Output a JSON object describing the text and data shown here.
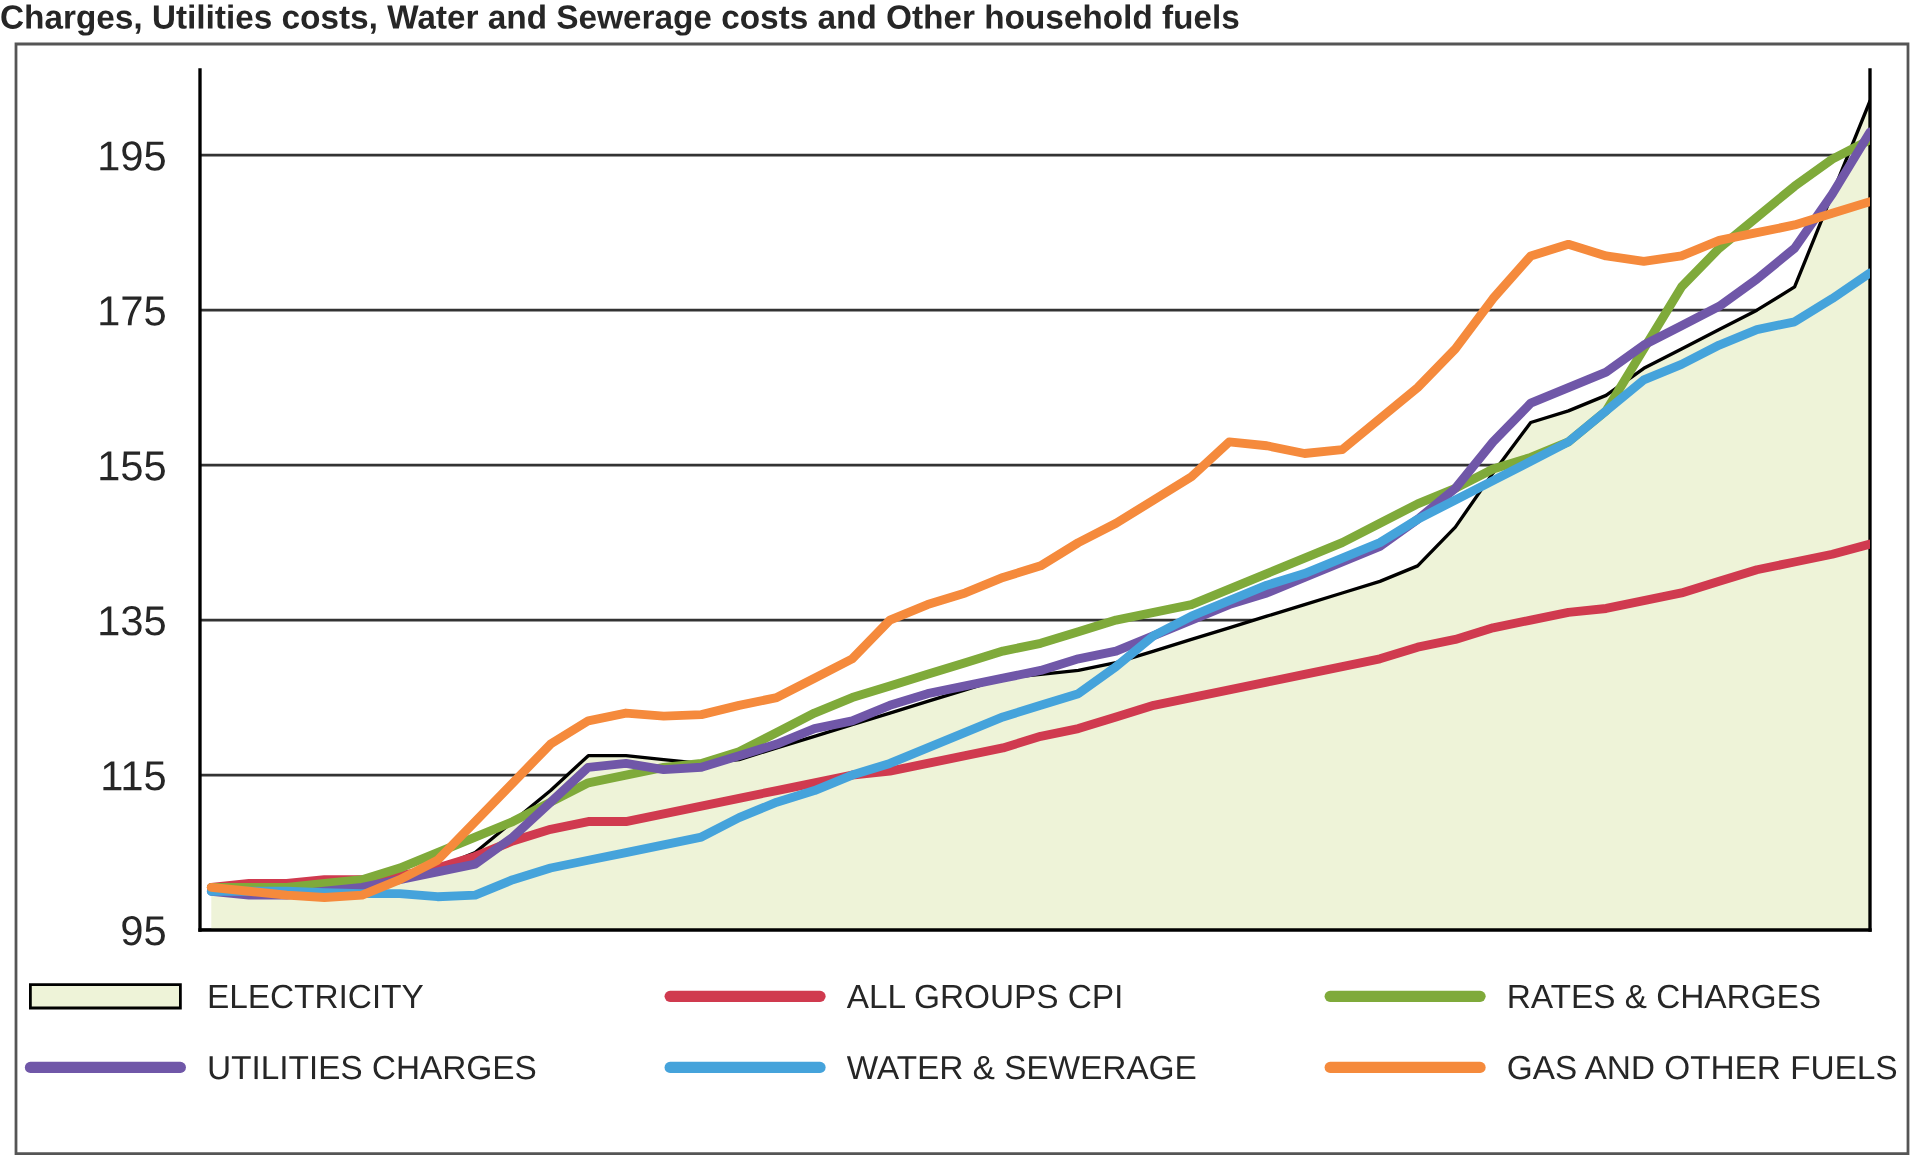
{
  "chart_data": {
    "type": "line",
    "title": "Charges, Utilities costs, Water and Sewerage costs and Other household fuels",
    "categories": [
      null,
      null,
      null,
      null,
      null,
      null,
      null,
      null,
      null,
      null,
      null,
      null,
      null,
      null,
      null,
      null,
      null,
      null,
      null,
      null,
      null,
      null,
      null,
      null,
      null,
      null,
      null,
      null,
      null,
      null,
      null,
      null,
      null,
      null,
      null,
      null,
      null,
      null,
      null,
      null,
      null,
      null,
      null,
      null,
      null
    ],
    "ylim": [
      95,
      206
    ],
    "yticks": [
      95,
      115,
      135,
      155,
      175,
      195
    ],
    "grid": "y",
    "legend": "bottom",
    "series": [
      {
        "name": "ELECTRICITY",
        "type": "area",
        "color": "#eef3d8",
        "values": [
          100.5,
          100.5,
          100.7,
          101,
          101.5,
          102,
          103,
          105,
          109,
          113,
          117.5,
          117.5,
          117,
          116.5,
          117,
          118.5,
          120,
          121.5,
          123,
          124.5,
          126,
          127.5,
          128,
          128.5,
          129.5,
          131,
          132.5,
          134,
          135.5,
          137,
          138.5,
          140,
          142,
          147,
          154,
          160.5,
          162,
          164,
          167.5,
          170,
          172.5,
          175,
          178,
          190,
          202
        ]
      },
      {
        "name": "ALL GROUPS CPI",
        "color": "#d03a4f",
        "values": [
          100.5,
          101,
          101,
          101.5,
          101.5,
          102,
          103,
          104.5,
          106.5,
          108,
          109,
          109,
          110,
          111,
          112,
          113,
          114,
          115,
          115.5,
          116.5,
          117.5,
          118.5,
          120,
          121,
          122.5,
          124,
          125,
          126,
          127,
          128,
          129,
          130,
          131.5,
          132.5,
          134,
          135,
          136,
          136.5,
          137.5,
          138.5,
          140,
          141.5,
          142.5,
          143.5,
          144.8
        ]
      },
      {
        "name": "RATES & CHARGES",
        "color": "#7faa3a",
        "values": [
          100.5,
          100.5,
          100.5,
          101,
          101.5,
          103,
          105,
          107,
          109,
          111.5,
          114,
          115,
          116,
          116.5,
          118,
          120.5,
          123,
          125,
          126.5,
          128,
          129.5,
          131,
          132,
          133.5,
          135,
          136,
          137,
          139,
          141,
          143,
          145,
          147.5,
          150,
          152,
          154.5,
          156,
          158,
          162,
          170,
          178,
          183,
          187,
          191,
          194.5,
          197
        ]
      },
      {
        "name": "UTILITIES CHARGES",
        "color": "#7057a8",
        "values": [
          100,
          99.5,
          99.5,
          100,
          100.5,
          101.5,
          102.5,
          103.5,
          107,
          111.5,
          116,
          116.5,
          115.7,
          116,
          117.5,
          119,
          121,
          122,
          124,
          125.5,
          126.5,
          127.5,
          128.5,
          130,
          131,
          133,
          135,
          137,
          138.5,
          140.5,
          142.5,
          144.5,
          148,
          152,
          158,
          163,
          165,
          167,
          170.5,
          173,
          175.5,
          179,
          183,
          190,
          198
        ]
      },
      {
        "name": "WATER & SEWERAGE",
        "color": "#45a3db",
        "values": [
          100,
          100,
          100,
          99.8,
          99.7,
          99.7,
          99.3,
          99.5,
          101.5,
          103,
          104,
          105,
          106,
          107,
          109.5,
          111.5,
          113,
          115,
          116.5,
          118.5,
          120.5,
          122.5,
          124,
          125.5,
          129,
          133,
          135.5,
          137.5,
          139.5,
          141,
          143,
          145,
          148,
          150.5,
          153,
          155.5,
          158,
          162,
          166,
          168,
          170.5,
          172.5,
          173.5,
          176.5,
          179.8
        ]
      },
      {
        "name": "GAS AND OTHER FUELS",
        "color": "#f58a3c",
        "values": [
          100.5,
          100,
          99.5,
          99.2,
          99.5,
          101.5,
          104,
          109,
          114,
          119,
          122,
          123,
          122.6,
          122.8,
          124,
          125,
          127.5,
          130,
          135,
          137,
          138.5,
          140.5,
          142,
          145,
          147.5,
          150.5,
          153.5,
          158,
          157.5,
          156.5,
          157,
          161,
          165,
          170,
          176.5,
          182,
          183.5,
          182,
          181.3,
          182,
          184,
          185,
          186,
          187.5,
          189
        ]
      }
    ]
  }
}
